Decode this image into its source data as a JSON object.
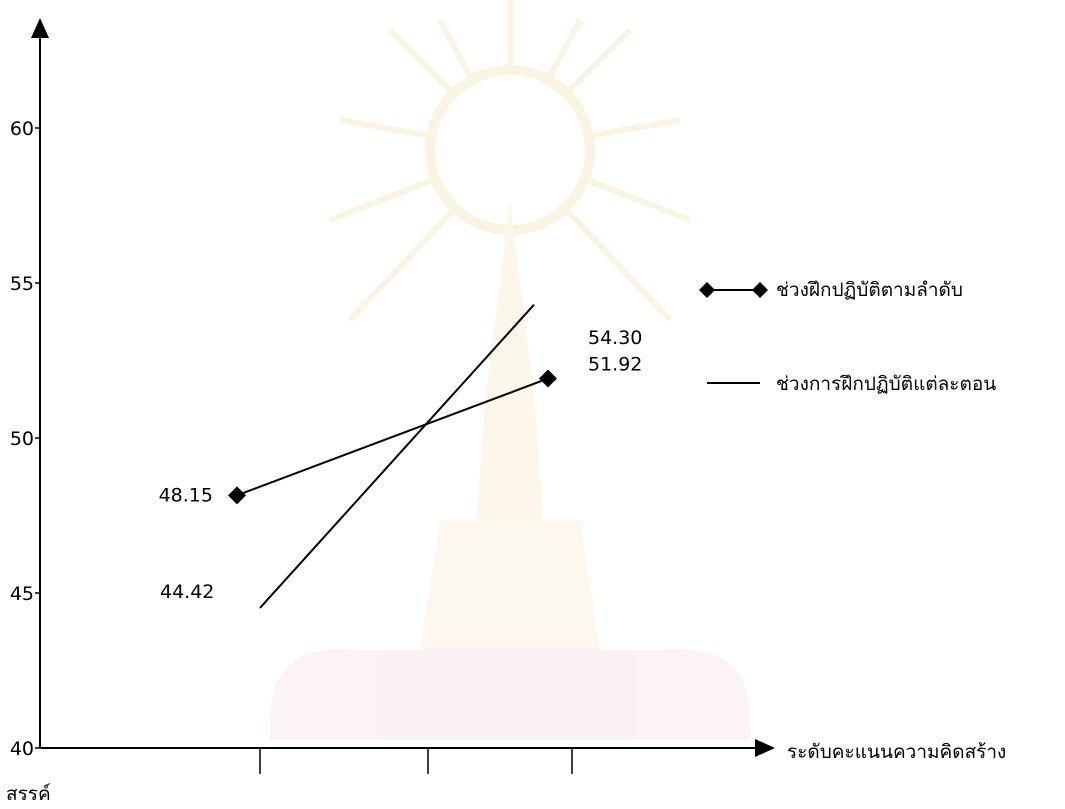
{
  "chart_data": {
    "type": "line",
    "title": "",
    "xlabel": "ระดับคะแนนความคิดสร้างสรรค์",
    "xlabel_line1": "ระดับคะแนนความคิดสร้าง",
    "xlabel_line2": "สรรค์",
    "ylabel": "",
    "ylim": [
      40,
      62
    ],
    "yticks": [
      40,
      45,
      50,
      55,
      60
    ],
    "ytick_labels": [
      "40",
      "45",
      "50",
      "55",
      "60"
    ],
    "x_ticks": 3,
    "series": [
      {
        "name": "ช่วงฝึกปฏิบัติตามลำดับ",
        "marker": "diamond",
        "x": [
          1,
          2.3
        ],
        "values": [
          48.15,
          51.92
        ],
        "labels": [
          "48.15",
          "51.92"
        ]
      },
      {
        "name": "ช่วงการฝึกปฏิบัติแต่ละตอน",
        "marker": "none",
        "x": [
          1.1,
          2.3
        ],
        "values": [
          44.42,
          54.3
        ],
        "labels": [
          "44.42",
          "54.30"
        ]
      }
    ],
    "legend_position": "right",
    "grid": false,
    "colors": {
      "line": "#000000",
      "watermark": "#e8c36a"
    }
  }
}
